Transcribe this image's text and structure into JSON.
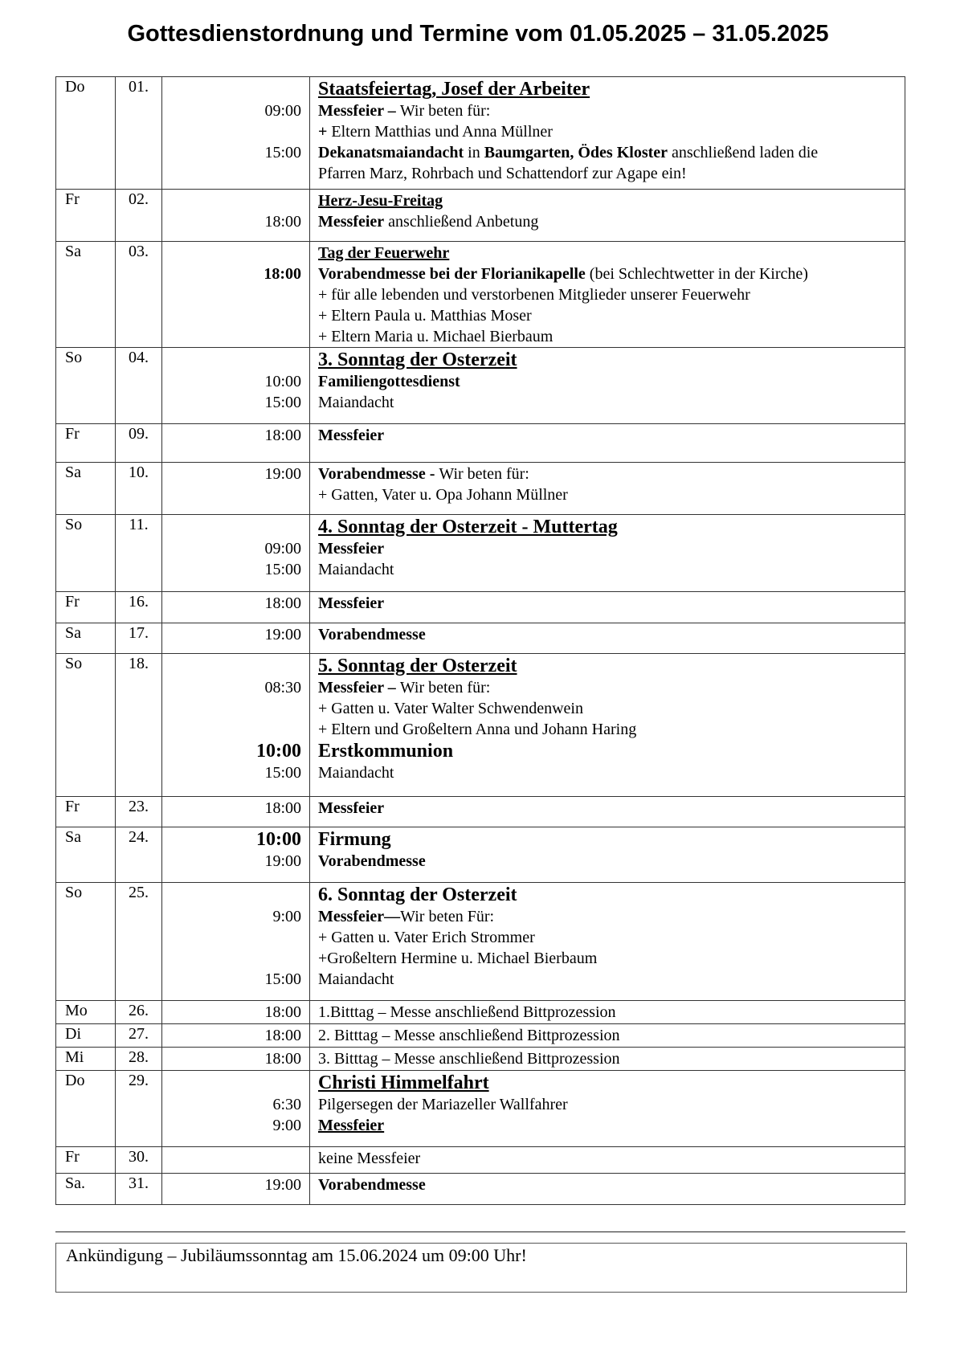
{
  "title": "Gottesdienstordnung und Termine vom 01.05.2025 – 31.05.2025",
  "rows": [
    {
      "day": "Do",
      "date": "01.",
      "lines": [
        {
          "big": true,
          "segs": [
            {
              "t": "Staatsfeiertag, Josef der Arbeiter",
              "b": true,
              "u": true
            }
          ]
        },
        {
          "time": "09:00",
          "segs": [
            {
              "t": "Messfeier – ",
              "b": true
            },
            {
              "t": "Wir beten für:"
            }
          ]
        },
        {
          "segs": [
            {
              "t": "+ ",
              "b": true
            },
            {
              "t": "Eltern Matthias und Anna Müllner"
            }
          ]
        },
        {
          "time": "15:00",
          "segs": [
            {
              "t": "Dekanatsmaiandacht",
              "b": true
            },
            {
              "t": " in "
            },
            {
              "t": "Baumgarten, Ödes Kloster",
              "b": true
            },
            {
              "t": " anschließend laden die"
            }
          ]
        },
        {
          "segs": [
            {
              "t": "Pfarren Marz, Rohrbach und Schattendorf zur Agape ein!"
            }
          ]
        }
      ]
    },
    {
      "day": "Fr",
      "date": "02.",
      "lines": [
        {
          "segs": [
            {
              "t": "Herz-Jesu-Freitag",
              "b": true,
              "u": true
            }
          ]
        },
        {
          "time": "18:00",
          "segs": [
            {
              "t": "Messfeier",
              "b": true
            },
            {
              "t": " anschließend Anbetung"
            }
          ]
        }
      ]
    },
    {
      "day": "Sa",
      "date": "03.",
      "lines": [
        {
          "segs": [
            {
              "t": "Tag der Feuerwehr",
              "b": true,
              "u": true
            }
          ]
        },
        {
          "time": "18:00",
          "timeBold": true,
          "segs": [
            {
              "t": "Vorabendmesse bei der Florianikapelle",
              "b": true
            },
            {
              "t": " (bei Schlechtwetter in der Kirche)"
            }
          ]
        },
        {
          "segs": [
            {
              "t": "+ für alle lebenden und verstorbenen Mitglieder unserer Feuerwehr"
            }
          ]
        },
        {
          "segs": [
            {
              "t": "+ Eltern Paula u. Matthias Moser"
            }
          ]
        },
        {
          "segs": [
            {
              "t": "+ Eltern Maria u. Michael Bierbaum"
            }
          ]
        }
      ]
    },
    {
      "day": "So",
      "date": "04.",
      "lines": [
        {
          "big": true,
          "segs": [
            {
              "t": "3. Sonntag der Osterzeit",
              "b": true,
              "u": true
            }
          ]
        },
        {
          "time": "10:00",
          "segs": [
            {
              "t": "Familiengottesdienst",
              "b": true
            }
          ]
        },
        {
          "time": "15:00",
          "segs": [
            {
              "t": "Maiandacht"
            }
          ]
        }
      ]
    },
    {
      "day": "Fr",
      "date": "09.",
      "lines": [
        {
          "time": "18:00",
          "segs": [
            {
              "t": "Messfeier",
              "b": true
            }
          ]
        }
      ]
    },
    {
      "day": "Sa",
      "date": "10.",
      "lines": [
        {
          "time": "19:00",
          "segs": [
            {
              "t": "Vorabendmesse - ",
              "b": true
            },
            {
              "t": "Wir beten für:"
            }
          ]
        },
        {
          "segs": [
            {
              "t": "+ Gatten, Vater u. Opa Johann Müllner"
            }
          ]
        }
      ]
    },
    {
      "day": "So",
      "date": "11.",
      "lines": [
        {
          "big": true,
          "segs": [
            {
              "t": "4. Sonntag der Osterzeit - Muttertag",
              "b": true,
              "u": true
            }
          ]
        },
        {
          "time": "09:00",
          "segs": [
            {
              "t": "Messfeier",
              "b": true
            }
          ]
        },
        {
          "time": "15:00",
          "segs": [
            {
              "t": "Maiandacht"
            }
          ]
        }
      ]
    },
    {
      "day": "Fr",
      "date": "16.",
      "lines": [
        {
          "time": "18:00",
          "segs": [
            {
              "t": "Messfeier",
              "b": true
            }
          ]
        }
      ]
    },
    {
      "day": "Sa",
      "date": "17.",
      "lines": [
        {
          "time": "19:00",
          "segs": [
            {
              "t": "Vorabendmesse",
              "b": true
            }
          ]
        }
      ]
    },
    {
      "day": "So",
      "date": "18.",
      "lines": [
        {
          "big": true,
          "segs": [
            {
              "t": "5. Sonntag der Osterzeit",
              "b": true,
              "u": true
            }
          ]
        },
        {
          "time": "08:30",
          "segs": [
            {
              "t": "Messfeier – ",
              "b": true
            },
            {
              "t": "Wir beten für:"
            }
          ]
        },
        {
          "segs": [
            {
              "t": "+ Gatten u. Vater Walter Schwendenwein"
            }
          ]
        },
        {
          "segs": [
            {
              "t": "+ Eltern und Großeltern Anna und Johann Haring"
            }
          ]
        },
        {
          "big": true,
          "time": "10:00",
          "segs": [
            {
              "t": "Erstkommunion",
              "b": true
            }
          ]
        },
        {
          "time": "15:00",
          "segs": [
            {
              "t": "Maiandacht"
            }
          ]
        }
      ]
    },
    {
      "day": "Fr",
      "date": "23.",
      "lines": [
        {
          "time": "18:00",
          "segs": [
            {
              "t": "Messfeier",
              "b": true
            }
          ]
        }
      ]
    },
    {
      "day": "Sa",
      "date": "24.",
      "lines": [
        {
          "big": true,
          "time": "10:00",
          "segs": [
            {
              "t": "Firmung",
              "b": true
            }
          ]
        },
        {
          "time": "19:00",
          "segs": [
            {
              "t": "Vorabendmesse",
              "b": true
            }
          ]
        }
      ]
    },
    {
      "day": "So",
      "date": "25.",
      "lines": [
        {
          "big": true,
          "segs": [
            {
              "t": "6. Sonntag der Osterzeit",
              "b": true
            }
          ]
        },
        {
          "time": "9:00",
          "segs": [
            {
              "t": "Messfeier—",
              "b": true
            },
            {
              "t": "Wir beten Für:"
            }
          ]
        },
        {
          "segs": [
            {
              "t": "+ Gatten u. Vater Erich Strommer"
            }
          ]
        },
        {
          "segs": [
            {
              "t": "+Großeltern Hermine u. Michael Bierbaum"
            }
          ]
        },
        {
          "time": "15:00",
          "segs": [
            {
              "t": "Maiandacht"
            }
          ]
        }
      ]
    },
    {
      "day": "Mo",
      "date": "26.",
      "lines": [
        {
          "time": "18:00",
          "segs": [
            {
              "t": "1.Bitttag –  Messe anschließend Bittprozession"
            }
          ]
        }
      ]
    },
    {
      "day": "Di",
      "date": "27.",
      "lines": [
        {
          "time": "18:00",
          "segs": [
            {
              "t": "2. Bitttag – Messe anschließend Bittprozession"
            }
          ]
        }
      ]
    },
    {
      "day": "Mi",
      "date": "28.",
      "lines": [
        {
          "time": "18:00",
          "segs": [
            {
              "t": "3. Bitttag – Messe anschließend Bittprozession"
            }
          ]
        }
      ]
    },
    {
      "day": "Do",
      "date": "29.",
      "lines": [
        {
          "big": true,
          "segs": [
            {
              "t": "Christi Himmelfahrt",
              "b": true,
              "u": true
            }
          ]
        },
        {
          "time": "6:30",
          "segs": [
            {
              "t": "Pilgersegen der Mariazeller Wallfahrer"
            }
          ]
        },
        {
          "time": "9:00",
          "segs": [
            {
              "t": "Messfeier",
              "b": true,
              "u": true
            }
          ]
        }
      ]
    },
    {
      "day": "Fr",
      "date": "30.",
      "lines": [
        {
          "segs": [
            {
              "t": "keine Messfeier"
            }
          ]
        }
      ]
    },
    {
      "day": "Sa.",
      "date": "31.",
      "lines": [
        {
          "time": "19:00",
          "segs": [
            {
              "t": "Vorabendmesse",
              "b": true
            }
          ]
        }
      ]
    }
  ],
  "announcement": "Ankündigung – Jubiläumssonntag am 15.06.2024 um 09:00 Uhr!"
}
